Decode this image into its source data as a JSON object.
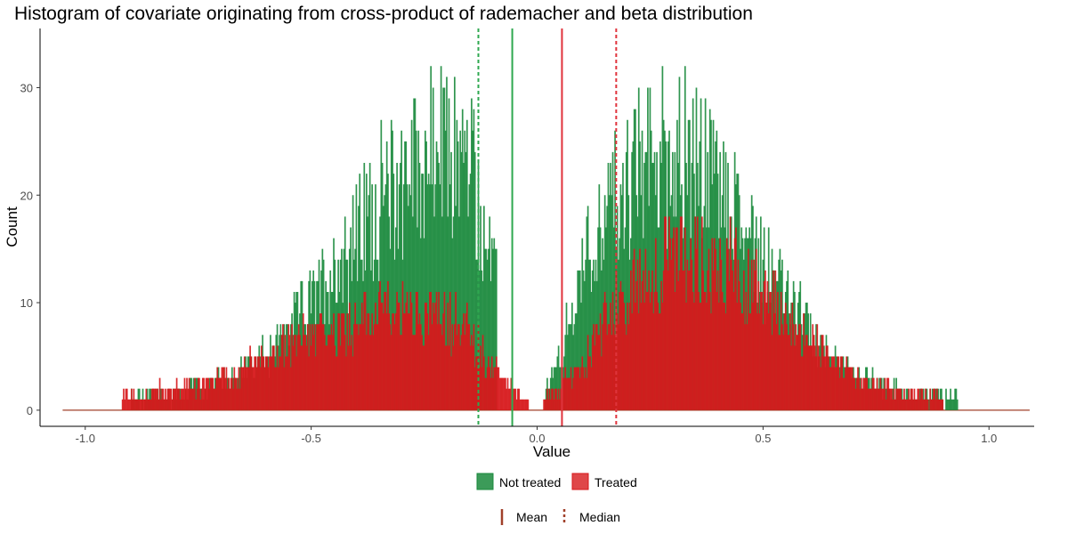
{
  "chart_data": {
    "type": "histogram",
    "title": "Histogram of covariate originating from cross-product of rademacher and beta distribution",
    "xlabel": "Value",
    "ylabel": "Count",
    "xlim": [
      -1.1,
      1.1
    ],
    "ylim": [
      -1.5,
      35.5
    ],
    "x_ticks": [
      {
        "value": -1.0,
        "label": "-1.0"
      },
      {
        "value": -0.5,
        "label": "-0.5"
      },
      {
        "value": 0.0,
        "label": "0.0"
      },
      {
        "value": 0.5,
        "label": "0.5"
      },
      {
        "value": 1.0,
        "label": "1.0"
      }
    ],
    "y_ticks": [
      {
        "value": 0,
        "label": "0"
      },
      {
        "value": 10,
        "label": "10"
      },
      {
        "value": 20,
        "label": "20"
      },
      {
        "value": 30,
        "label": "30"
      }
    ],
    "x_range": [
      -1.05,
      1.09
    ],
    "bin_width": 0.0025,
    "series": [
      {
        "name": "Not treated",
        "color": "#1a8a3c",
        "peak_counts": {
          "left_max": 32,
          "left_peak_x": -0.2,
          "right_max": 34,
          "right_peak_x": 0.3
        },
        "mean": -0.055,
        "median": -0.13
      },
      {
        "name": "Treated",
        "color": "#d7191c",
        "peak_counts": {
          "left_max": 15,
          "left_peak_x": -0.3,
          "right_max": 24,
          "right_peak_x": 0.35
        },
        "mean": 0.055,
        "median": 0.175
      }
    ],
    "grid": false,
    "legend_position": "bottom",
    "fill_legend": {
      "items": [
        {
          "label": "Not treated",
          "color": "#1a8a3c"
        },
        {
          "label": "Treated",
          "color": "#d7191c"
        }
      ]
    },
    "line_legend": {
      "items": [
        {
          "label": "Mean",
          "style": "solid"
        },
        {
          "label": "Median",
          "style": "dashed"
        }
      ],
      "color": "#a0402a"
    }
  }
}
